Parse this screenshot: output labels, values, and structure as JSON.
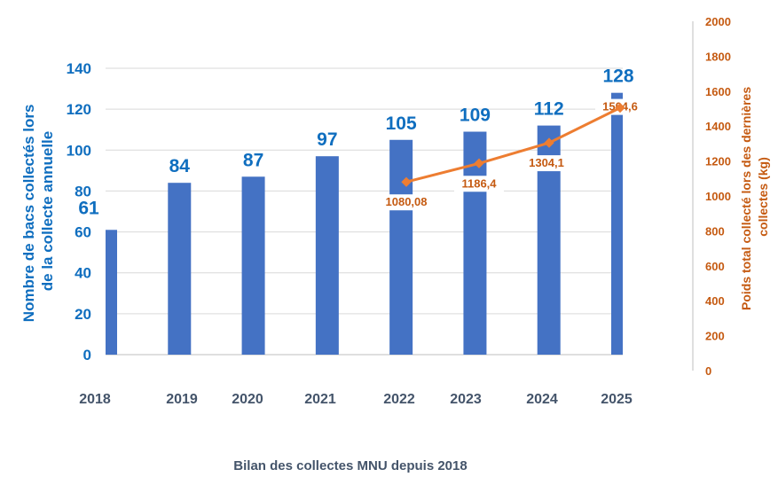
{
  "chart_data": {
    "type": "bar",
    "title": "Bilan des collectes MNU depuis 2018",
    "categories": [
      "2018",
      "2019",
      "2020",
      "2021",
      "2022",
      "2023",
      "2024",
      "2025"
    ],
    "series": [
      {
        "name": "Nombre de bacs collectés lors de la collecte annuelle",
        "type": "bar",
        "axis": "left",
        "color": "#4472C4",
        "values": [
          61,
          84,
          87,
          97,
          105,
          109,
          112,
          128
        ],
        "labels": [
          "61",
          "84",
          "87",
          "97",
          "105",
          "109",
          "112",
          "128"
        ]
      },
      {
        "name": "Poids total collecté lors des dernières collectes (kg)",
        "type": "line",
        "axis": "right",
        "color": "#ED7D31",
        "values": [
          null,
          null,
          null,
          null,
          1080.08,
          1186.4,
          1304.1,
          1504.6
        ],
        "labels": [
          "",
          "",
          "",
          "",
          "1080,08",
          "1186,4",
          "1304,1",
          "1504,6"
        ]
      }
    ],
    "y_left": {
      "label_lines": [
        "Nombre de bacs collectés lors",
        "de la collecte annuelle"
      ],
      "ylim": [
        0,
        140
      ],
      "ticks": [
        "0",
        "20",
        "40",
        "60",
        "80",
        "100",
        "120",
        "140"
      ],
      "color": "#0F6EBF"
    },
    "y_right": {
      "label_lines": [
        "Poids total collecté lors des dernières",
        "collectes (kg)"
      ],
      "ylim": [
        0,
        2000
      ],
      "ticks": [
        "0",
        "200",
        "400",
        "600",
        "800",
        "1000",
        "1200",
        "1400",
        "1600",
        "1800",
        "2000"
      ],
      "color": "#C55A11"
    },
    "xlabel": "",
    "grid": true,
    "legend": "none"
  }
}
